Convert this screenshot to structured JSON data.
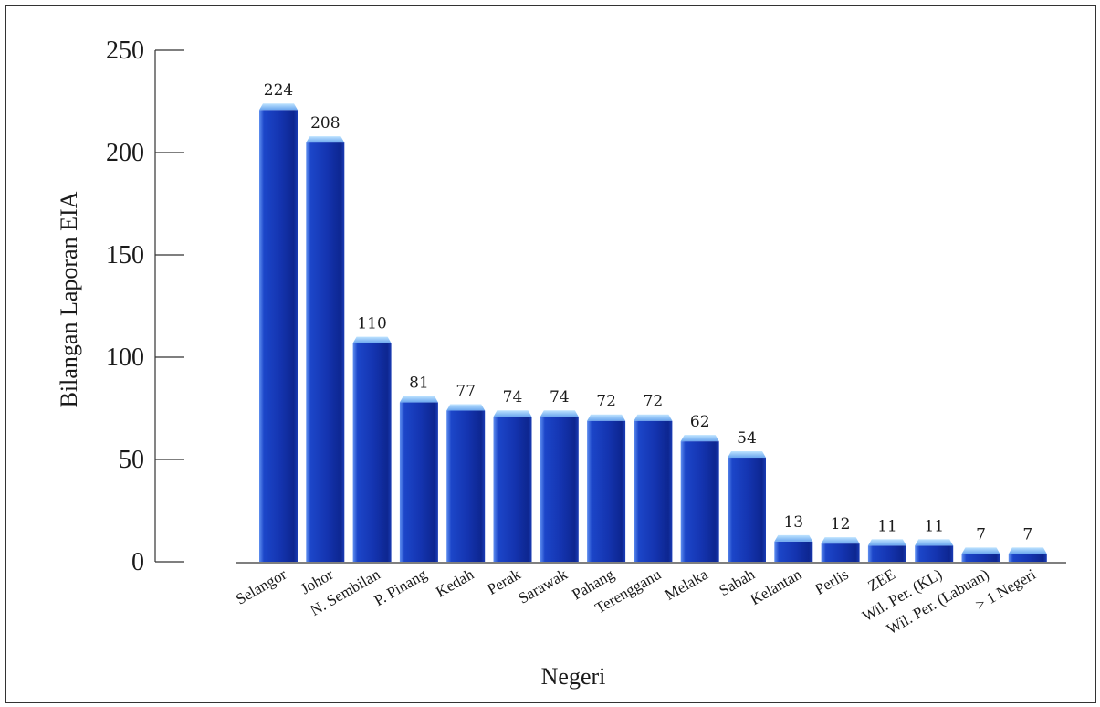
{
  "chart_data": {
    "type": "bar",
    "title": "",
    "xlabel": "Negeri",
    "ylabel": "Bilangan Laporan EIA",
    "ylim": [
      0,
      250
    ],
    "yticks": [
      0,
      50,
      100,
      150,
      200,
      250
    ],
    "categories": [
      "Selangor",
      "Johor",
      "N. Sembilan",
      "P. Pinang",
      "Kedah",
      "Perak",
      "Sarawak",
      "Pahang",
      "Terengganu",
      "Melaka",
      "Sabah",
      "Kelantan",
      "Perlis",
      "ZEE",
      "Wil. Per. (KL)",
      "Wil. Per. (Labuan)",
      "> 1 Negeri"
    ],
    "values": [
      224,
      208,
      110,
      81,
      77,
      74,
      74,
      72,
      72,
      62,
      54,
      13,
      12,
      11,
      11,
      7,
      7
    ],
    "grid": false,
    "bar_color": "#1f3fb8"
  }
}
